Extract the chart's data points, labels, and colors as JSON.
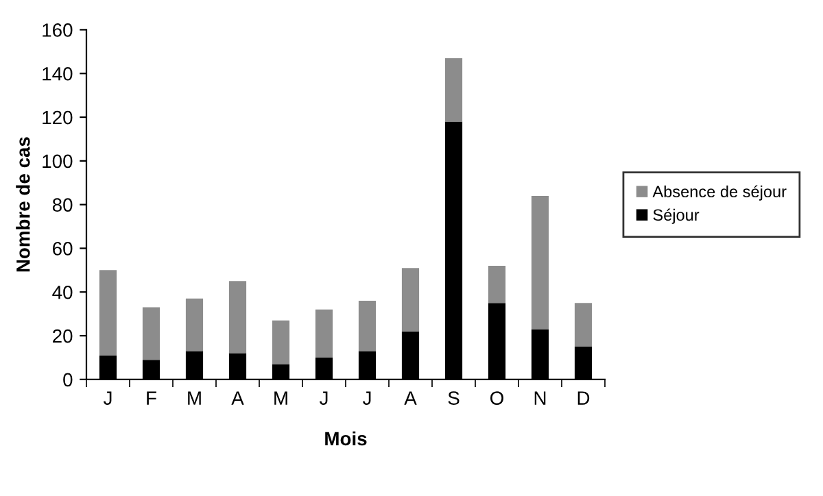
{
  "chart_data": {
    "type": "bar",
    "stacked": true,
    "xlabel": "Mois",
    "ylabel": "Nombre de cas",
    "categories": [
      "J",
      "F",
      "M",
      "A",
      "M",
      "J",
      "J",
      "A",
      "S",
      "O",
      "N",
      "D"
    ],
    "series": [
      {
        "name": "Séjour",
        "color": "#000000",
        "values": [
          11,
          9,
          13,
          12,
          7,
          10,
          13,
          22,
          118,
          35,
          23,
          15
        ]
      },
      {
        "name": "Absence de séjour",
        "color": "#8c8c8c",
        "values": [
          39,
          24,
          24,
          33,
          20,
          22,
          23,
          29,
          29,
          17,
          61,
          20
        ]
      }
    ],
    "ylim": [
      0,
      160
    ],
    "yticks": [
      0,
      20,
      40,
      60,
      80,
      100,
      120,
      140,
      160
    ],
    "grid": false,
    "legend": "right"
  }
}
